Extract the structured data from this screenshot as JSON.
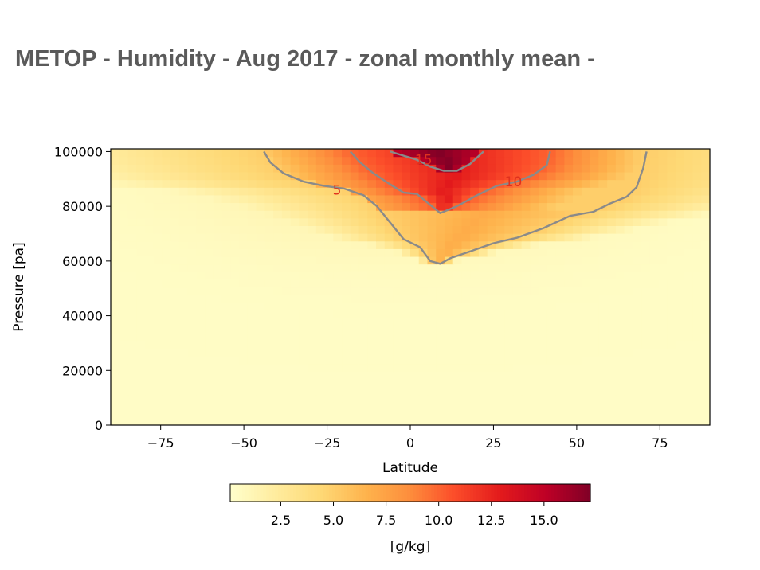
{
  "page": {
    "title": "METOP - Humidity - Aug 2017 - zonal monthly mean -"
  },
  "chart_data": {
    "type": "heatmap",
    "title": "",
    "xlabel": "Latitude",
    "ylabel": "Pressure [pa]",
    "xlim": [
      -90,
      90
    ],
    "ylim": [
      0,
      101000
    ],
    "x_ticks": [
      -75,
      -50,
      -25,
      0,
      25,
      50,
      75
    ],
    "x_tick_labels": [
      "−75",
      "−50",
      "−25",
      "0",
      "25",
      "50",
      "75"
    ],
    "y_ticks": [
      0,
      20000,
      40000,
      60000,
      80000,
      100000
    ],
    "y_tick_labels": [
      "0",
      "20000",
      "40000",
      "60000",
      "80000",
      "100000"
    ],
    "colormap": "YlOrRd (yellow-orange-red)",
    "colorbar": {
      "label": "[g/kg]",
      "orientation": "horizontal",
      "range": [
        0.1,
        17.2
      ],
      "ticks": [
        2.5,
        5.0,
        7.5,
        10.0,
        12.5,
        15.0
      ],
      "tick_labels": [
        "2.5",
        "5.0",
        "7.5",
        "10.0",
        "12.5",
        "15.0"
      ]
    },
    "contours": [
      {
        "level": 5,
        "label": "5",
        "label_position": [
          -22,
          86000
        ],
        "points": [
          [
            -44,
            100000
          ],
          [
            -42,
            96000
          ],
          [
            -38,
            92000
          ],
          [
            -32,
            89000
          ],
          [
            -26,
            87500
          ],
          [
            -20,
            86500
          ],
          [
            -14,
            84000
          ],
          [
            -10,
            80000
          ],
          [
            -6,
            74000
          ],
          [
            -2,
            68000
          ],
          [
            3,
            65000
          ],
          [
            6,
            60000
          ],
          [
            9,
            59000
          ],
          [
            12,
            61000
          ],
          [
            18,
            63500
          ],
          [
            25,
            66500
          ],
          [
            32,
            68500
          ],
          [
            40,
            72000
          ],
          [
            48,
            76500
          ],
          [
            55,
            78000
          ],
          [
            60,
            81000
          ],
          [
            65,
            83500
          ],
          [
            68,
            87000
          ],
          [
            70,
            94000
          ],
          [
            71,
            100000
          ]
        ]
      },
      {
        "level": 10,
        "label": "10",
        "label_position": [
          31,
          89000
        ],
        "points": [
          [
            -18,
            100000
          ],
          [
            -15,
            96000
          ],
          [
            -11,
            92000
          ],
          [
            -6,
            88000
          ],
          [
            -2,
            85000
          ],
          [
            2,
            84500
          ],
          [
            5,
            81500
          ],
          [
            9,
            77500
          ],
          [
            14,
            80000
          ],
          [
            20,
            84000
          ],
          [
            26,
            87500
          ],
          [
            32,
            89000
          ],
          [
            37,
            91500
          ],
          [
            41,
            95000
          ],
          [
            42,
            100000
          ]
        ]
      },
      {
        "level": 15,
        "label": "15",
        "label_position": [
          4,
          97000
        ],
        "points": [
          [
            -6,
            100000
          ],
          [
            -2,
            98500
          ],
          [
            2,
            97000
          ],
          [
            6,
            94500
          ],
          [
            10,
            93000
          ],
          [
            14,
            93000
          ],
          [
            18,
            95500
          ],
          [
            22,
            100000
          ]
        ]
      }
    ]
  }
}
